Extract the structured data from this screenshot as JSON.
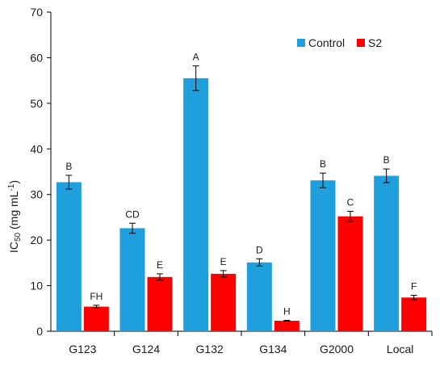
{
  "chart_data": {
    "type": "bar",
    "categories": [
      "G123",
      "G124",
      "G132",
      "G134",
      "G2000",
      "Local"
    ],
    "series": [
      {
        "name": "Control",
        "color": "#1f9fdb",
        "values": [
          32.7,
          22.6,
          55.5,
          15.1,
          33.1,
          34.1
        ],
        "errors": [
          1.5,
          1.1,
          2.7,
          0.8,
          1.6,
          1.5
        ],
        "letters": [
          "B",
          "CD",
          "A",
          "D",
          "B",
          "B"
        ]
      },
      {
        "name": "S2",
        "color": "#ff0000",
        "values": [
          5.4,
          11.9,
          12.6,
          2.3,
          25.2,
          7.4
        ],
        "errors": [
          0.3,
          0.7,
          0.7,
          0.1,
          1.1,
          0.5
        ],
        "letters": [
          "FH",
          "E",
          "E",
          "H",
          "C",
          "F"
        ]
      }
    ],
    "title": "",
    "ylabel_main": "IC",
    "ylabel_sub": "50",
    "ylabel_rest": " (mg mL",
    "ylabel_sup": "-1",
    "ylabel_close": ")",
    "xlabel": "",
    "ylim": [
      0,
      70
    ],
    "yticks": [
      0,
      10,
      20,
      30,
      40,
      50,
      60,
      70
    ],
    "grid": false,
    "legend_position": "top-right"
  }
}
